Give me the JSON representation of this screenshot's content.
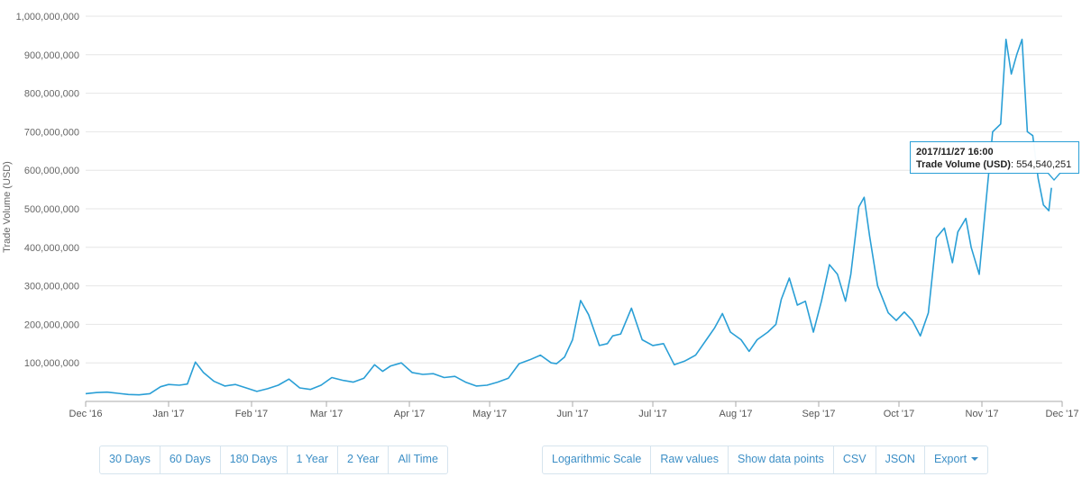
{
  "chart_data": {
    "type": "line",
    "title": "",
    "xlabel": "",
    "ylabel": "Trade Volume (USD)",
    "ylim": [
      0,
      1000000000
    ],
    "y_ticks": [
      100000000,
      200000000,
      300000000,
      400000000,
      500000000,
      600000000,
      700000000,
      800000000,
      900000000,
      1000000000
    ],
    "y_tick_labels": [
      "100,000,000",
      "200,000,000",
      "300,000,000",
      "400,000,000",
      "500,000,000",
      "600,000,000",
      "700,000,000",
      "800,000,000",
      "900,000,000",
      "1,000,000,000"
    ],
    "x_range": [
      "2016-12-01",
      "2017-12-01"
    ],
    "x_ticks": [
      "2016-12-01",
      "2017-01-01",
      "2017-02-01",
      "2017-03-01",
      "2017-04-01",
      "2017-05-01",
      "2017-06-01",
      "2017-07-01",
      "2017-08-01",
      "2017-09-01",
      "2017-10-01",
      "2017-11-01",
      "2017-12-01"
    ],
    "x_tick_labels": [
      "Dec '16",
      "Jan '17",
      "Feb '17",
      "Mar '17",
      "Apr '17",
      "May '17",
      "Jun '17",
      "Jul '17",
      "Aug '17",
      "Sep '17",
      "Oct '17",
      "Nov '17",
      "Dec '17"
    ],
    "grid": true,
    "line_color": "#2a9fd6",
    "series": [
      {
        "x": [
          "2016-12-01",
          "2016-12-05",
          "2016-12-09",
          "2016-12-13",
          "2016-12-17",
          "2016-12-21",
          "2016-12-25",
          "2016-12-29",
          "2017-01-01",
          "2017-01-05",
          "2017-01-08",
          "2017-01-11",
          "2017-01-14",
          "2017-01-18",
          "2017-01-22",
          "2017-01-26",
          "2017-01-30",
          "2017-02-03",
          "2017-02-07",
          "2017-02-11",
          "2017-02-15",
          "2017-02-19",
          "2017-02-23",
          "2017-02-27",
          "2017-03-03",
          "2017-03-07",
          "2017-03-11",
          "2017-03-15",
          "2017-03-19",
          "2017-03-22",
          "2017-03-25",
          "2017-03-29",
          "2017-04-02",
          "2017-04-06",
          "2017-04-10",
          "2017-04-14",
          "2017-04-18",
          "2017-04-22",
          "2017-04-26",
          "2017-04-30",
          "2017-05-04",
          "2017-05-08",
          "2017-05-12",
          "2017-05-16",
          "2017-05-20",
          "2017-05-24",
          "2017-05-26",
          "2017-05-29",
          "2017-06-01",
          "2017-06-04",
          "2017-06-07",
          "2017-06-11",
          "2017-06-14",
          "2017-06-16",
          "2017-06-19",
          "2017-06-23",
          "2017-06-27",
          "2017-07-01",
          "2017-07-05",
          "2017-07-09",
          "2017-07-13",
          "2017-07-17",
          "2017-07-21",
          "2017-07-24",
          "2017-07-27",
          "2017-07-30",
          "2017-08-03",
          "2017-08-06",
          "2017-08-09",
          "2017-08-13",
          "2017-08-16",
          "2017-08-18",
          "2017-08-21",
          "2017-08-24",
          "2017-08-27",
          "2017-08-30",
          "2017-09-02",
          "2017-09-05",
          "2017-09-08",
          "2017-09-11",
          "2017-09-13",
          "2017-09-16",
          "2017-09-18",
          "2017-09-20",
          "2017-09-23",
          "2017-09-27",
          "2017-09-30",
          "2017-10-03",
          "2017-10-06",
          "2017-10-09",
          "2017-10-12",
          "2017-10-15",
          "2017-10-18",
          "2017-10-21",
          "2017-10-23",
          "2017-10-26",
          "2017-10-28",
          "2017-10-31",
          "2017-11-02",
          "2017-11-05",
          "2017-11-08",
          "2017-11-10",
          "2017-11-12",
          "2017-11-14",
          "2017-11-16",
          "2017-11-18",
          "2017-11-20",
          "2017-11-22",
          "2017-11-24",
          "2017-11-26",
          "2017-11-27"
        ],
        "y": [
          20000000,
          23000000,
          24000000,
          21000000,
          18000000,
          17000000,
          20000000,
          38000000,
          44000000,
          42000000,
          45000000,
          102000000,
          75000000,
          52000000,
          40000000,
          44000000,
          35000000,
          26000000,
          33000000,
          42000000,
          58000000,
          35000000,
          31000000,
          42000000,
          62000000,
          55000000,
          50000000,
          60000000,
          95000000,
          78000000,
          92000000,
          100000000,
          75000000,
          70000000,
          72000000,
          62000000,
          65000000,
          50000000,
          40000000,
          42000000,
          50000000,
          60000000,
          98000000,
          108000000,
          120000000,
          100000000,
          98000000,
          115000000,
          160000000,
          262000000,
          225000000,
          145000000,
          150000000,
          170000000,
          175000000,
          242000000,
          160000000,
          145000000,
          150000000,
          95000000,
          105000000,
          120000000,
          160000000,
          190000000,
          228000000,
          180000000,
          160000000,
          130000000,
          160000000,
          180000000,
          200000000,
          265000000,
          320000000,
          250000000,
          260000000,
          180000000,
          260000000,
          355000000,
          330000000,
          260000000,
          330000000,
          505000000,
          530000000,
          430000000,
          300000000,
          230000000,
          210000000,
          232000000,
          210000000,
          170000000,
          230000000,
          425000000,
          450000000,
          360000000,
          440000000,
          475000000,
          400000000,
          330000000,
          480000000,
          700000000,
          720000000,
          940000000,
          850000000,
          900000000,
          940000000,
          700000000,
          690000000,
          580000000,
          510000000,
          495000000,
          554540251
        ]
      }
    ],
    "tooltip": {
      "date": "2017/11/27 16:00",
      "label": "Trade Volume (USD)",
      "value": "554,540,251"
    }
  },
  "range_buttons": [
    "30 Days",
    "60 Days",
    "180 Days",
    "1 Year",
    "2 Year",
    "All Time"
  ],
  "option_buttons": [
    "Logarithmic Scale",
    "Raw values",
    "Show data points",
    "CSV",
    "JSON",
    "Export"
  ]
}
